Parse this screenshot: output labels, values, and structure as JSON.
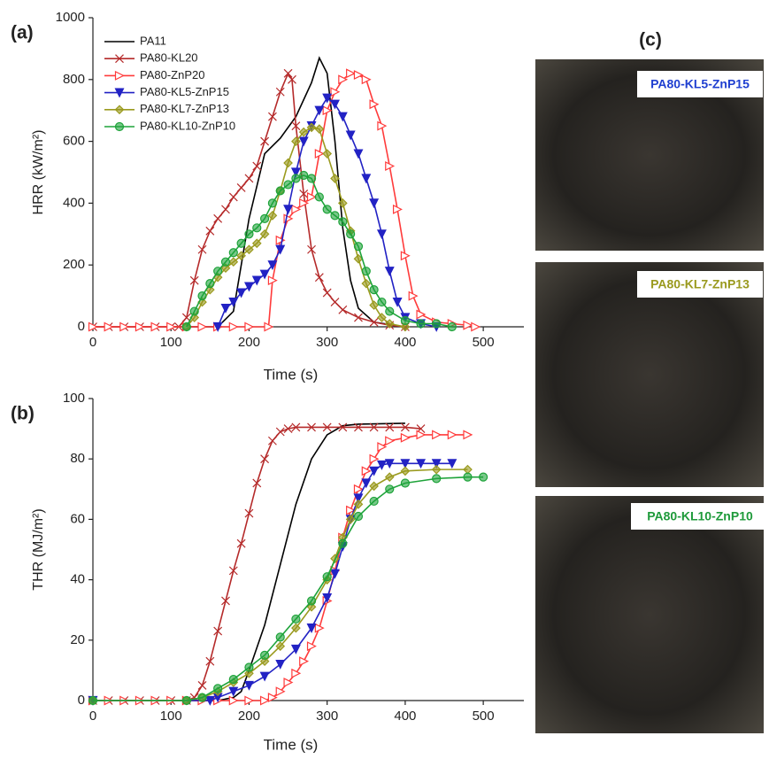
{
  "chart_data": [
    {
      "type": "line",
      "panel_label": "(a)",
      "xlabel": "Time (s)",
      "ylabel": "HRR (kW/m²)",
      "xlim": [
        0,
        552
      ],
      "ylim": [
        0,
        1000
      ],
      "xticks": [
        0,
        100,
        200,
        300,
        400,
        500
      ],
      "yticks": [
        0,
        200,
        400,
        600,
        800,
        1000
      ],
      "legend": "upper left",
      "series": [
        {
          "name": "PA11",
          "color": "#000000",
          "marker": "none",
          "x": [
            0,
            160,
            180,
            200,
            220,
            240,
            260,
            280,
            290,
            300,
            310,
            320,
            330,
            340,
            360,
            400
          ],
          "values": [
            0,
            0,
            50,
            350,
            560,
            610,
            680,
            790,
            870,
            820,
            600,
            320,
            150,
            60,
            15,
            0
          ]
        },
        {
          "name": "PA80-KL20",
          "color": "#b52a2a",
          "marker": "x",
          "x": [
            0,
            20,
            40,
            60,
            80,
            100,
            110,
            120,
            130,
            140,
            150,
            160,
            170,
            180,
            190,
            200,
            210,
            220,
            230,
            240,
            250,
            255,
            260,
            270,
            280,
            290,
            300,
            310,
            320,
            340,
            360,
            380,
            400
          ],
          "values": [
            0,
            0,
            0,
            0,
            0,
            0,
            0,
            30,
            150,
            250,
            310,
            350,
            380,
            420,
            450,
            480,
            520,
            600,
            680,
            760,
            820,
            800,
            650,
            430,
            250,
            160,
            110,
            80,
            55,
            30,
            15,
            5,
            0
          ]
        },
        {
          "name": "PA80-ZnP20",
          "color": "#ff3b3b",
          "marker": "triangle-right",
          "x": [
            0,
            20,
            40,
            60,
            80,
            100,
            120,
            140,
            160,
            180,
            200,
            225,
            230,
            240,
            250,
            260,
            270,
            280,
            290,
            300,
            310,
            320,
            330,
            340,
            350,
            360,
            370,
            380,
            390,
            400,
            410,
            420,
            440,
            460,
            480,
            490
          ],
          "values": [
            0,
            0,
            0,
            0,
            0,
            0,
            0,
            0,
            0,
            0,
            0,
            0,
            150,
            280,
            350,
            380,
            400,
            420,
            560,
            700,
            760,
            800,
            820,
            815,
            800,
            720,
            650,
            520,
            380,
            230,
            100,
            40,
            15,
            10,
            5,
            0
          ]
        },
        {
          "name": "PA80-KL5-ZnP15",
          "color": "#2222c4",
          "marker": "triangle-down",
          "x": [
            160,
            170,
            180,
            190,
            200,
            210,
            220,
            230,
            240,
            250,
            260,
            270,
            280,
            290,
            300,
            310,
            320,
            330,
            340,
            350,
            360,
            370,
            380,
            390,
            400,
            420,
            440
          ],
          "values": [
            0,
            60,
            80,
            110,
            130,
            150,
            170,
            200,
            250,
            380,
            500,
            600,
            650,
            700,
            740,
            720,
            680,
            620,
            560,
            480,
            400,
            300,
            180,
            80,
            30,
            10,
            0
          ]
        },
        {
          "name": "PA80-KL7-ZnP13",
          "color": "#9a9a1e",
          "marker": "diamond",
          "x": [
            120,
            130,
            140,
            150,
            160,
            170,
            180,
            190,
            200,
            210,
            220,
            230,
            240,
            250,
            260,
            270,
            280,
            290,
            300,
            310,
            320,
            330,
            340,
            350,
            360,
            370,
            380,
            400
          ],
          "values": [
            0,
            30,
            80,
            120,
            160,
            190,
            210,
            230,
            250,
            270,
            300,
            360,
            440,
            530,
            600,
            630,
            645,
            640,
            560,
            480,
            400,
            310,
            220,
            140,
            70,
            30,
            10,
            0
          ]
        },
        {
          "name": "PA80-KL10-ZnP10",
          "color": "#1ea33a",
          "marker": "circle",
          "x": [
            120,
            130,
            140,
            150,
            160,
            170,
            180,
            190,
            200,
            210,
            220,
            230,
            240,
            250,
            260,
            270,
            280,
            290,
            300,
            310,
            320,
            330,
            340,
            350,
            360,
            370,
            380,
            400,
            420,
            440,
            460
          ],
          "values": [
            0,
            50,
            100,
            140,
            180,
            210,
            240,
            270,
            300,
            320,
            350,
            400,
            440,
            460,
            480,
            490,
            480,
            420,
            380,
            360,
            340,
            300,
            260,
            180,
            120,
            80,
            50,
            20,
            10,
            10,
            0
          ]
        }
      ]
    },
    {
      "type": "line",
      "panel_label": "(b)",
      "xlabel": "Time (s)",
      "ylabel": "THR (MJ/m²)",
      "xlim": [
        0,
        552
      ],
      "ylim": [
        0,
        100
      ],
      "xticks": [
        0,
        100,
        200,
        300,
        400,
        500
      ],
      "yticks": [
        0,
        20,
        40,
        60,
        80,
        100
      ],
      "series": [
        {
          "color": "#000000",
          "marker": "none",
          "x": [
            0,
            160,
            180,
            190,
            200,
            220,
            240,
            260,
            280,
            300,
            320,
            340,
            400
          ],
          "values": [
            0,
            0,
            1,
            3,
            10,
            25,
            45,
            65,
            80,
            88,
            91,
            91.5,
            91.8
          ]
        },
        {
          "color": "#b52a2a",
          "marker": "x",
          "x": [
            0,
            20,
            40,
            60,
            80,
            100,
            120,
            130,
            140,
            150,
            160,
            170,
            180,
            190,
            200,
            210,
            220,
            230,
            240,
            250,
            260,
            280,
            300,
            320,
            340,
            360,
            380,
            400,
            420
          ],
          "values": [
            0,
            0,
            0,
            0,
            0,
            0,
            0,
            1,
            5,
            13,
            23,
            33,
            43,
            52,
            62,
            72,
            80,
            86,
            89,
            90,
            90.5,
            90.5,
            90.5,
            90.5,
            90.5,
            90.5,
            90.5,
            90.5,
            90
          ]
        },
        {
          "color": "#ff3b3b",
          "marker": "triangle-right",
          "x": [
            0,
            20,
            40,
            60,
            80,
            100,
            120,
            140,
            160,
            180,
            200,
            220,
            230,
            240,
            250,
            260,
            270,
            280,
            290,
            300,
            310,
            320,
            330,
            340,
            350,
            360,
            370,
            380,
            400,
            420,
            440,
            460,
            480
          ],
          "values": [
            0,
            0,
            0,
            0,
            0,
            0,
            0,
            0,
            0,
            0,
            0,
            0,
            1,
            3,
            6,
            9,
            13,
            18,
            24,
            33,
            43,
            54,
            63,
            70,
            76,
            80,
            84,
            86,
            87,
            88,
            88,
            88,
            88
          ]
        },
        {
          "color": "#2222c4",
          "marker": "triangle-down",
          "x": [
            0,
            150,
            160,
            180,
            200,
            220,
            240,
            260,
            280,
            300,
            310,
            320,
            330,
            340,
            350,
            360,
            370,
            380,
            400,
            420,
            440,
            460
          ],
          "values": [
            0,
            0,
            1,
            3,
            5,
            8,
            12,
            17,
            24,
            34,
            42,
            51,
            60,
            67,
            72,
            76,
            78,
            78.5,
            78.5,
            78.5,
            78.5,
            78.5
          ]
        },
        {
          "color": "#9a9a1e",
          "marker": "diamond",
          "x": [
            0,
            120,
            140,
            160,
            180,
            200,
            220,
            240,
            260,
            280,
            300,
            310,
            320,
            330,
            340,
            360,
            380,
            400,
            440,
            480
          ],
          "values": [
            0,
            0,
            1,
            3,
            6,
            9,
            13,
            18,
            24,
            31,
            40,
            47,
            54,
            60,
            65,
            71,
            74,
            76,
            76.5,
            76.5
          ]
        },
        {
          "color": "#1ea33a",
          "marker": "circle",
          "x": [
            0,
            120,
            140,
            160,
            180,
            200,
            220,
            240,
            260,
            280,
            300,
            320,
            340,
            360,
            380,
            400,
            440,
            480,
            500
          ],
          "values": [
            0,
            0,
            1,
            4,
            7,
            11,
            15,
            21,
            27,
            33,
            41,
            52,
            61,
            66,
            70,
            72,
            73.5,
            74,
            74
          ]
        }
      ]
    }
  ],
  "photos": {
    "panel_label": "(c)",
    "labels": [
      {
        "text": "PA80-KL5-ZnP15",
        "color": "#1f3fd0"
      },
      {
        "text": "PA80-KL7-ZnP13",
        "color": "#9a9a1e"
      },
      {
        "text": "PA80-KL10-ZnP10",
        "color": "#1e9a3a"
      }
    ]
  }
}
